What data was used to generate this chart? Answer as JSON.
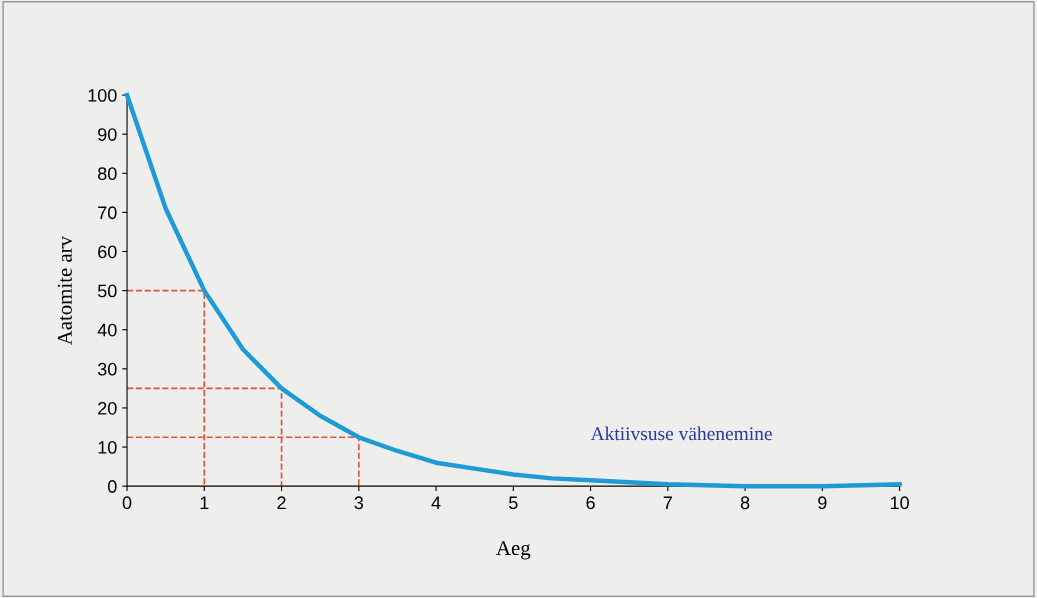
{
  "chart_data": {
    "type": "line",
    "xlabel": "Aeg",
    "ylabel": "Aatomite arv",
    "xlim": [
      0,
      10
    ],
    "ylim": [
      0,
      100
    ],
    "xticks": [
      0,
      1,
      2,
      3,
      4,
      5,
      6,
      7,
      8,
      9,
      10
    ],
    "yticks": [
      0,
      10,
      20,
      30,
      40,
      50,
      60,
      70,
      80,
      90,
      100
    ],
    "grid": false,
    "legend": false,
    "series": [
      {
        "name": "Aktiivsuse vähenemine",
        "color": "#1e9bd7",
        "x": [
          0,
          0.5,
          1,
          1.5,
          2,
          2.5,
          3,
          3.5,
          4,
          4.5,
          5,
          5.5,
          6,
          7,
          8,
          9,
          10
        ],
        "values": [
          100,
          71,
          50,
          35,
          25,
          18,
          12.5,
          9,
          6,
          4.5,
          3,
          2,
          1.5,
          0.5,
          0,
          0,
          0.5
        ]
      },
      {
        "color": "#e0553a",
        "line_style": "dashed",
        "x": [
          0,
          1,
          1
        ],
        "values": [
          50,
          50,
          0
        ]
      },
      {
        "color": "#e0553a",
        "line_style": "dashed",
        "x": [
          0,
          2,
          2
        ],
        "values": [
          25,
          25,
          0
        ]
      },
      {
        "color": "#e0553a",
        "line_style": "dashed",
        "x": [
          0,
          3,
          3
        ],
        "values": [
          12.5,
          12.5,
          0
        ]
      }
    ]
  }
}
